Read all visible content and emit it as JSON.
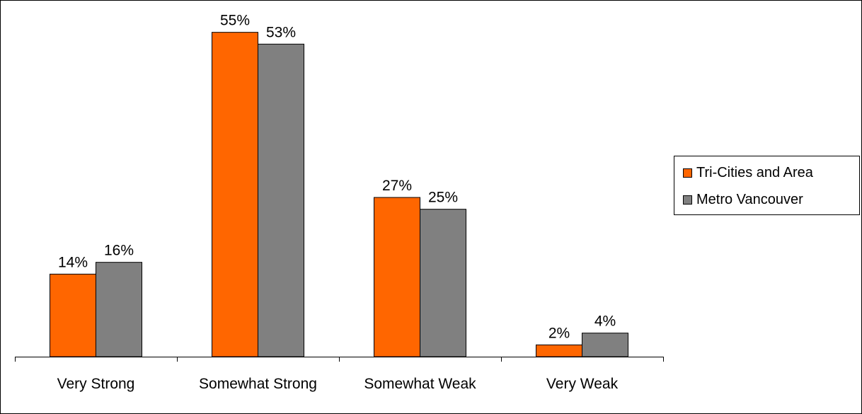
{
  "chart_data": {
    "type": "bar",
    "categories": [
      "Very Strong",
      "Somewhat Strong",
      "Somewhat Weak",
      "Very Weak"
    ],
    "series": [
      {
        "name": "Tri-Cities and Area",
        "values": [
          14,
          55,
          27,
          2
        ],
        "color": "#ff6600"
      },
      {
        "name": "Metro Vancouver",
        "values": [
          16,
          53,
          25,
          4
        ],
        "color": "#808080"
      }
    ],
    "value_suffix": "%",
    "ylim": [
      0,
      60
    ],
    "grid": false,
    "legend": "right",
    "title": "",
    "xlabel": "",
    "ylabel": ""
  }
}
